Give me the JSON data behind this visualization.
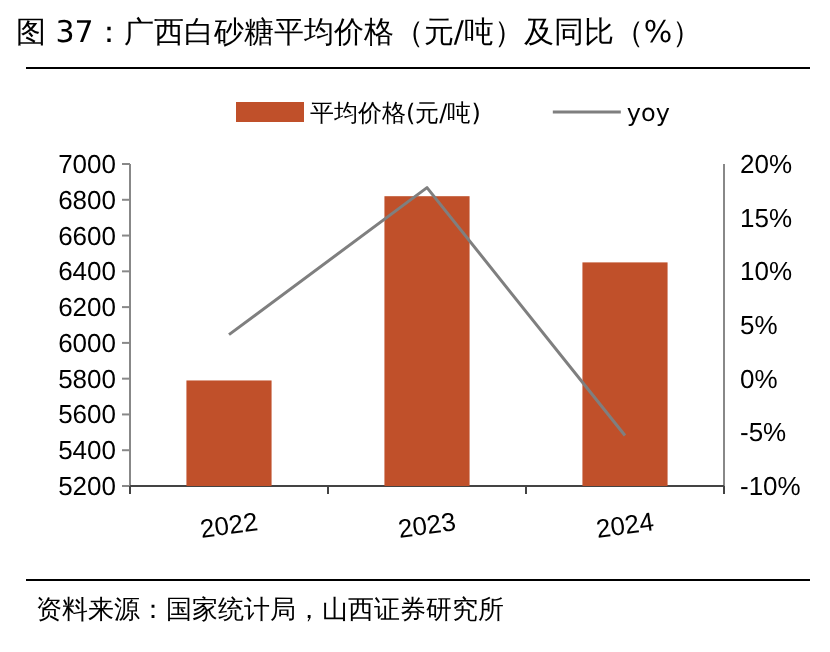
{
  "chart_data": {
    "type": "bar",
    "title": "图 37：广西白砂糖平均价格（元/吨）及同比（%）",
    "categories": [
      "2022",
      "2023",
      "2024"
    ],
    "series": [
      {
        "name": "平均价格(元/吨)",
        "color": "#c0502a",
        "values": [
          5790,
          6820,
          6450
        ]
      },
      {
        "name": "yoy",
        "type": "line",
        "axis": "y2",
        "color": "#7f7f7f",
        "values": [
          4.1,
          17.8,
          -5.3
        ]
      }
    ],
    "ylim": [
      5200,
      7000
    ],
    "yticks": [
      5200,
      5400,
      5600,
      5800,
      6000,
      6200,
      6400,
      6600,
      6800,
      7000
    ],
    "y2lim": [
      -10,
      20
    ],
    "y2ticks": [
      {
        "value": -10,
        "label": "-10%"
      },
      {
        "value": -5,
        "label": "-5%"
      },
      {
        "value": 0,
        "label": "0%"
      },
      {
        "value": 5,
        "label": "5%"
      },
      {
        "value": 10,
        "label": "10%"
      },
      {
        "value": 15,
        "label": "15%"
      },
      {
        "value": 20,
        "label": "20%"
      }
    ],
    "legend": "top",
    "grid": false,
    "marker": "none",
    "line_style": "solid",
    "annotations": [
      "资料来源：国家统计局，山西证券研究所"
    ]
  }
}
